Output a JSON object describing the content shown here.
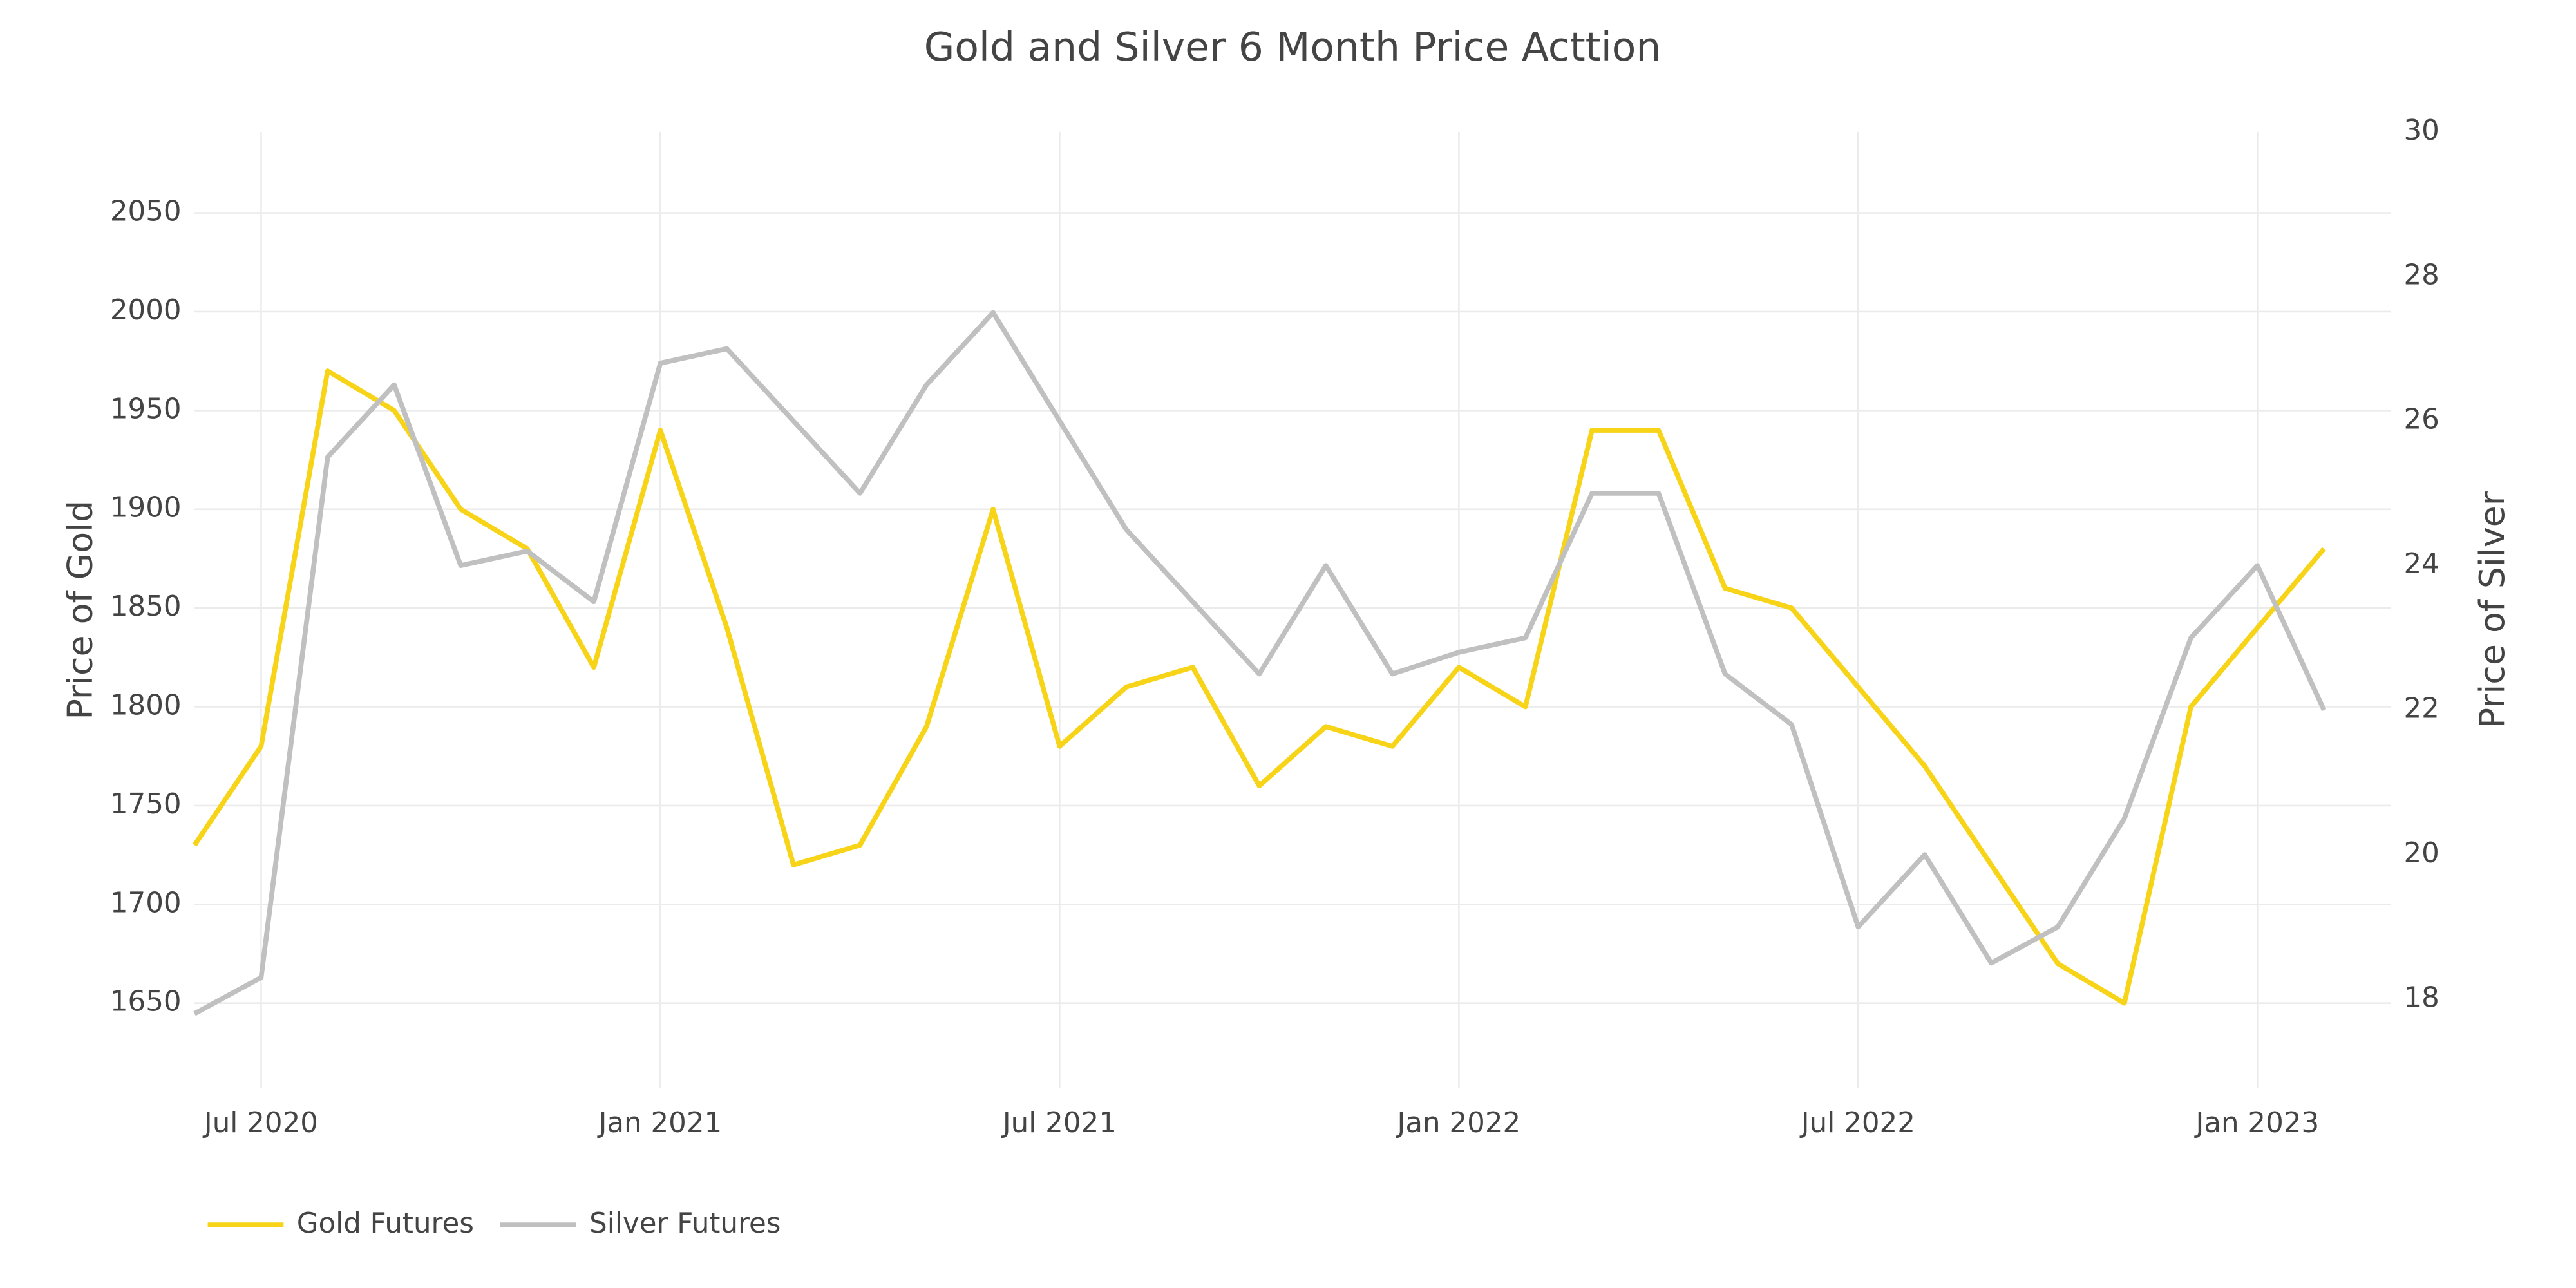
{
  "chart_data": {
    "type": "line",
    "title": "Gold and Silver 6 Month Price Acttion",
    "x": [
      "2020-06",
      "2020-07",
      "2020-08",
      "2020-09",
      "2020-10",
      "2020-11",
      "2020-12",
      "2021-01",
      "2021-02",
      "2021-03",
      "2021-04",
      "2021-05",
      "2021-06",
      "2021-07",
      "2021-08",
      "2021-09",
      "2021-10",
      "2021-11",
      "2021-12",
      "2022-01",
      "2022-02",
      "2022-03",
      "2022-04",
      "2022-05",
      "2022-06",
      "2022-07",
      "2022-08",
      "2022-09",
      "2022-10",
      "2022-11",
      "2022-12",
      "2023-01",
      "2023-02"
    ],
    "series": [
      {
        "name": "Gold Futures",
        "color": "#f7d417",
        "values": [
          1730,
          1780,
          1970,
          1950,
          1900,
          1880,
          1820,
          1940,
          1840,
          1720,
          1730,
          1790,
          1900,
          1780,
          1810,
          1820,
          1760,
          1790,
          1780,
          1820,
          1800,
          1940,
          1940,
          1860,
          1850,
          1810,
          1770,
          1720,
          1670,
          1650,
          1800,
          1840,
          1880
        ]
      },
      {
        "name": "Silver Futures",
        "color": "#c0c0c0",
        "axis": "y2",
        "values": [
          17.8,
          18.3,
          25.5,
          26.5,
          24,
          24.2,
          23.5,
          26.8,
          27,
          26,
          25,
          26.5,
          27.5,
          26,
          24.5,
          23.5,
          22.5,
          24,
          22.5,
          22.8,
          23,
          25,
          25,
          22.5,
          21.8,
          19,
          20,
          18.5,
          19,
          20.5,
          23,
          24,
          22
        ]
      }
    ],
    "xlim": [
      "2020-06",
      "2023-03"
    ],
    "xticks": [
      {
        "value": "2020-07",
        "label": "Jul 2020"
      },
      {
        "value": "2021-01",
        "label": "Jan 2021"
      },
      {
        "value": "2021-07",
        "label": "Jul 2021"
      },
      {
        "value": "2022-01",
        "label": "Jan 2022"
      },
      {
        "value": "2022-07",
        "label": "Jul 2022"
      },
      {
        "value": "2023-01",
        "label": "Jan 2023"
      }
    ],
    "ylim": [
      1607,
      2091
    ],
    "yticks": [
      1650,
      1700,
      1750,
      1800,
      1850,
      1900,
      1950,
      2000,
      2050
    ],
    "y2lim": [
      16.77,
      30
    ],
    "y2ticks": [
      18,
      20,
      22,
      24,
      26,
      28,
      30
    ],
    "ylabel": "Price of Gold",
    "y2label": "Price of Silver",
    "grid": true,
    "legend": "bottom-left"
  }
}
